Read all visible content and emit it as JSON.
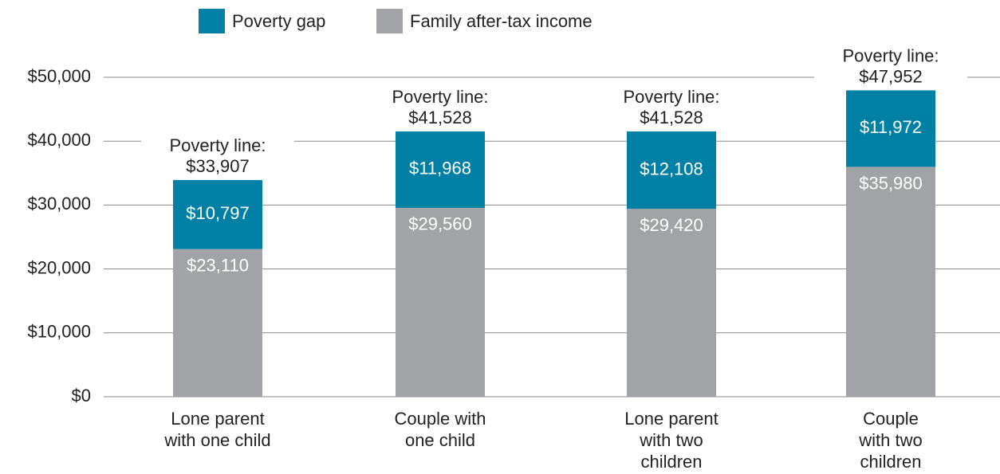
{
  "chart_data": {
    "type": "stacked_bar",
    "categories": [
      "Lone parent\nwith one child",
      "Couple with\none child",
      "Lone parent\nwith two\nchildren",
      "Couple\nwith two\nchildren"
    ],
    "series": [
      {
        "name": "Family after-tax income",
        "color": "#a2a3a6",
        "values": [
          23110,
          29560,
          29420,
          35980
        ],
        "value_labels": [
          "$23,110",
          "$29,560",
          "$29,420",
          "$35,980"
        ]
      },
      {
        "name": "Poverty gap",
        "color": "#0080a5",
        "values": [
          10797,
          11968,
          12108,
          11972
        ],
        "value_labels": [
          "$10,797",
          "$11,968",
          "$12,108",
          "$11,972"
        ]
      }
    ],
    "annotations": [
      "Poverty line:\n$33,907",
      "Poverty line:\n$41,528",
      "Poverty line:\n$41,528",
      "Poverty line:\n$47,952"
    ],
    "ylim": [
      0,
      50000
    ],
    "yticks": [
      {
        "value": 0,
        "label": "$0"
      },
      {
        "value": 10000,
        "label": "$10,000"
      },
      {
        "value": 20000,
        "label": "$20,000"
      },
      {
        "value": 30000,
        "label": "$30,000"
      },
      {
        "value": 40000,
        "label": "$40,000"
      },
      {
        "value": 50000,
        "label": "$50,000"
      }
    ],
    "grid": true,
    "legend": "top"
  }
}
